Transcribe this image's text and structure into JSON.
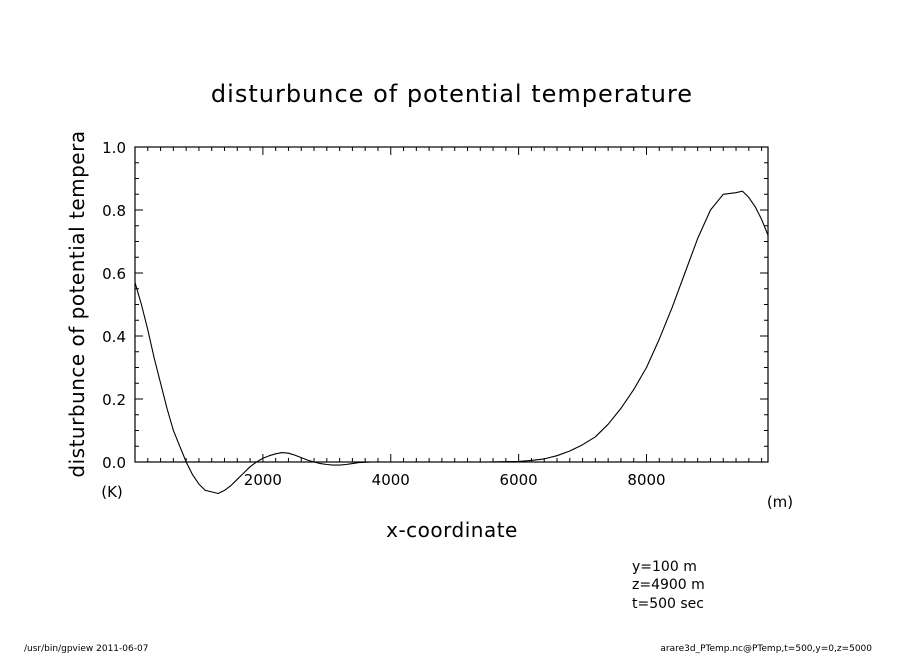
{
  "chart_data": {
    "type": "line",
    "title": "disturbunce of potential temperature",
    "xlabel": "x-coordinate",
    "x_unit": "(m)",
    "ylabel": "disturbunce of potential tempera",
    "y_unit": "(K)",
    "xlim": [
      0,
      9900
    ],
    "ylim": [
      0.0,
      1.0
    ],
    "x_ticks": [
      2000,
      4000,
      6000,
      8000
    ],
    "y_ticks": [
      0.0,
      0.2,
      0.4,
      0.6,
      0.8,
      1.0
    ],
    "y_tick_labels": [
      "0.0",
      "0.2",
      "0.4",
      "0.6",
      "0.8",
      "1.0"
    ],
    "grid": false,
    "series": [
      {
        "x": [
          0,
          100,
          200,
          300,
          400,
          500,
          600,
          700,
          800,
          900,
          1000,
          1100,
          1200,
          1300,
          1400,
          1500,
          1600,
          1700,
          1800,
          1900,
          2000,
          2100,
          2200,
          2300,
          2400,
          2500,
          2600,
          2700,
          2800,
          2900,
          3000,
          3100,
          3200,
          3300,
          3400,
          3500,
          3700,
          4000,
          4500,
          5000,
          5500,
          6000,
          6200,
          6400,
          6600,
          6800,
          7000,
          7200,
          7400,
          7600,
          7800,
          8000,
          8200,
          8400,
          8600,
          8800,
          9000,
          9200,
          9400,
          9500,
          9600,
          9700,
          9800,
          9900
        ],
        "y": [
          0.57,
          0.5,
          0.42,
          0.33,
          0.25,
          0.17,
          0.1,
          0.05,
          0.0,
          -0.04,
          -0.07,
          -0.09,
          -0.095,
          -0.1,
          -0.09,
          -0.075,
          -0.055,
          -0.035,
          -0.015,
          0.0,
          0.012,
          0.02,
          0.026,
          0.03,
          0.028,
          0.022,
          0.014,
          0.006,
          0.0,
          -0.005,
          -0.008,
          -0.01,
          -0.01,
          -0.008,
          -0.005,
          -0.002,
          0.0,
          0.0,
          0.0,
          0.0,
          0.0,
          0.002,
          0.005,
          0.01,
          0.02,
          0.035,
          0.055,
          0.08,
          0.12,
          0.17,
          0.23,
          0.3,
          0.39,
          0.49,
          0.6,
          0.71,
          0.8,
          0.85,
          0.855,
          0.86,
          0.84,
          0.81,
          0.77,
          0.72
        ]
      }
    ]
  },
  "annotations": {
    "y_line": "y=100  m",
    "z_line": "z=4900  m",
    "t_line": "t=500  sec"
  },
  "footer": {
    "left": "/usr/bin/gpview  2011-06-07",
    "right": "arare3d_PTemp.nc@PTemp,t=500,y=0,z=5000"
  }
}
